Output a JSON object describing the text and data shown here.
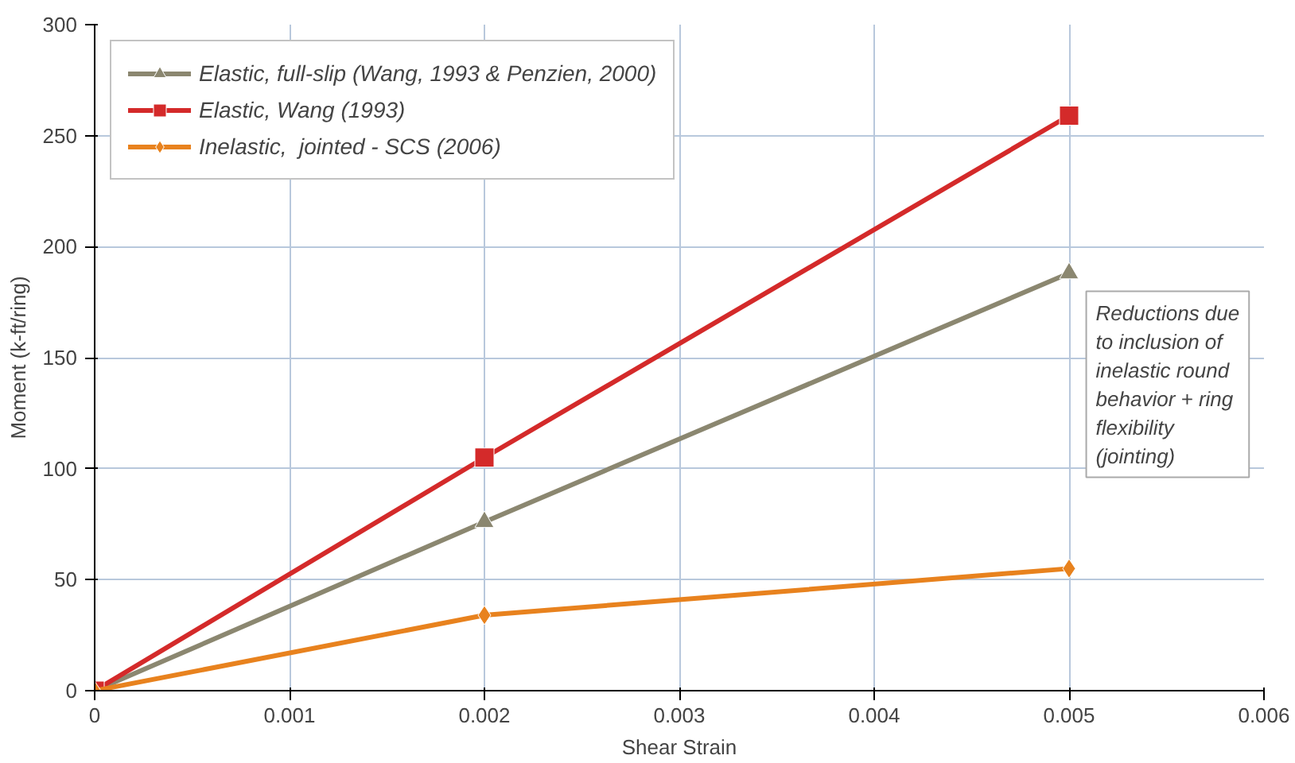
{
  "chart_data": {
    "type": "line",
    "xlabel": "Shear Strain",
    "ylabel": "Moment (k-ft/ring)",
    "x": [
      0,
      0.002,
      0.005
    ],
    "series": [
      {
        "name": "Elastic, full-slip (Wang, 1993 & Penzien, 2000)",
        "color": "#8b8770",
        "values": [
          0,
          76,
          188
        ],
        "marker": "triangle"
      },
      {
        "name": "Elastic, Wang (1993)",
        "color": "#d42a2a",
        "values": [
          0,
          105,
          259
        ],
        "marker": "square"
      },
      {
        "name": "Inelastic,  jointed - SCS (2006)",
        "color": "#e8821e",
        "values": [
          0,
          34,
          55
        ],
        "marker": "diamond"
      }
    ],
    "xlim": [
      0,
      0.006
    ],
    "xticks": [
      0,
      0.001,
      0.002,
      0.003,
      0.004,
      0.005,
      0.006
    ],
    "ylim": [
      0,
      300
    ],
    "yticks": [
      0,
      50,
      100,
      150,
      200,
      250,
      300
    ],
    "grid": true,
    "legend": "top left",
    "line_style": "solid",
    "annotations": [
      "Reductions due to inclusion of inelastic round behavior + ring flexibility (jointing)"
    ]
  }
}
